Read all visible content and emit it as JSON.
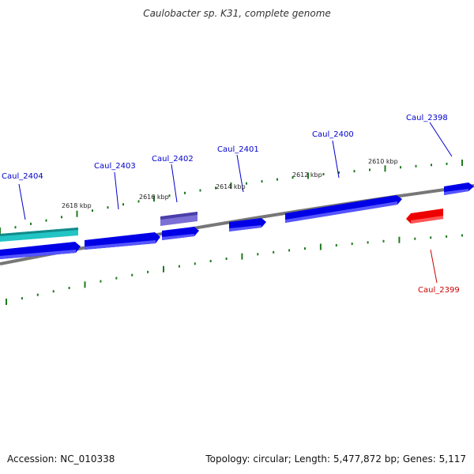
{
  "title": "Caulobacter sp. K31, complete genome",
  "footer": {
    "accession": "Accession: NC_010338",
    "summary": "Topology: circular; Length: 5,477,872 bp; Genes: 5,117"
  },
  "colors": {
    "forward_gene": "#0000e6",
    "reverse_gene": "#ee0000",
    "cyan_gene": "#22c4c4",
    "purple_gene": "#6a5acd",
    "backbone": "#808080",
    "ticks": "#1f7a1f",
    "forward_label": "#0000cc",
    "reverse_label": "#cc0000"
  },
  "gene_labels": [
    {
      "id": "Caul_2404",
      "strand": "forward"
    },
    {
      "id": "Caul_2403",
      "strand": "forward"
    },
    {
      "id": "Caul_2402",
      "strand": "forward"
    },
    {
      "id": "Caul_2401",
      "strand": "forward"
    },
    {
      "id": "Caul_2400",
      "strand": "forward"
    },
    {
      "id": "Caul_2398",
      "strand": "forward"
    },
    {
      "id": "Caul_2399",
      "strand": "reverse"
    }
  ],
  "tick_labels": [
    "2618 kbp",
    "2616 kbp",
    "2614 kbp",
    "2612 kbp",
    "2610 kbp"
  ]
}
